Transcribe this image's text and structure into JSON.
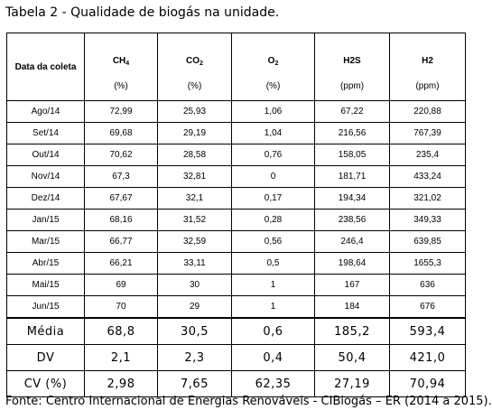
{
  "caption": "Tabela 2 - Qualidade de biogás na unidade.",
  "header": {
    "row_label": "Data da coleta",
    "columns": [
      {
        "name": "CH",
        "sub": "4",
        "unit": "(%)"
      },
      {
        "name": "CO",
        "sub": "2",
        "unit": "(%)"
      },
      {
        "name": "O",
        "sub": "2",
        "unit": "(%)"
      },
      {
        "name": "H2S",
        "sub": "",
        "unit": "(ppm)"
      },
      {
        "name": "H2",
        "sub": "",
        "unit": "(ppm)"
      }
    ]
  },
  "rows": [
    {
      "date": "Ago/14",
      "values": [
        "72,99",
        "25,93",
        "1,06",
        "67,22",
        "220,88"
      ]
    },
    {
      "date": "Set/14",
      "values": [
        "69,68",
        "29,19",
        "1,04",
        "216,56",
        "767,39"
      ]
    },
    {
      "date": "Out/14",
      "values": [
        "70,62",
        "28,58",
        "0,76",
        "158,05",
        "235,4"
      ]
    },
    {
      "date": "Nov/14",
      "values": [
        "67,3",
        "32,81",
        "0",
        "181,71",
        "433,24"
      ]
    },
    {
      "date": "Dez/14",
      "values": [
        "67,67",
        "32,1",
        "0,17",
        "194,34",
        "321,02"
      ]
    },
    {
      "date": "Jan/15",
      "values": [
        "68,16",
        "31,52",
        "0,28",
        "238,56",
        "349,33"
      ]
    },
    {
      "date": "Mar/15",
      "values": [
        "66,77",
        "32,59",
        "0,56",
        "246,4",
        "639,85"
      ]
    },
    {
      "date": "Abr/15",
      "values": [
        "66,21",
        "33,11",
        "0,5",
        "198,64",
        "1655,3"
      ]
    },
    {
      "date": "Mai/15",
      "values": [
        "69",
        "30",
        "1",
        "167",
        "636"
      ]
    },
    {
      "date": "Jun/15",
      "values": [
        "70",
        "29",
        "1",
        "184",
        "676"
      ]
    }
  ],
  "summary": [
    {
      "label": "Média",
      "values": [
        "68,8",
        "30,5",
        "0,6",
        "185,2",
        "593,4"
      ]
    },
    {
      "label": "DV",
      "values": [
        "2,1",
        "2,3",
        "0,4",
        "50,4",
        "421,0"
      ]
    },
    {
      "label": "CV (%)",
      "values": [
        "2,98",
        "7,65",
        "62,35",
        "27,19",
        "70,94"
      ]
    }
  ],
  "footnote": "Fonte: Centro Internacional de Energias Renováveis - CIBiogás – ER (2014 a 2015)."
}
